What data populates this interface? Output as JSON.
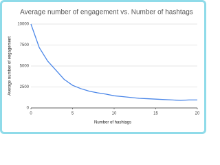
{
  "chart_data": {
    "type": "line",
    "title": "Average number of engagement vs. Number of hashtags",
    "x_label": "Number of hashtags",
    "y_label": "Average number of engagement",
    "x": [
      0,
      1,
      2,
      3,
      4,
      5,
      6,
      7,
      8,
      9,
      10,
      11,
      12,
      13,
      14,
      15,
      16,
      17,
      18,
      19,
      20
    ],
    "series": [
      {
        "name": "Average number of engagement",
        "color": "#4a86e8",
        "values": [
          10000,
          7200,
          5600,
          4500,
          3400,
          2700,
          2300,
          2000,
          1800,
          1650,
          1450,
          1350,
          1250,
          1150,
          1100,
          1050,
          1000,
          950,
          900,
          950,
          950
        ]
      }
    ],
    "xlim": [
      0,
      20
    ],
    "xticks": [
      0,
      5,
      10,
      15,
      20
    ],
    "ylim": [
      0,
      10000
    ],
    "yticks": [
      0,
      2500,
      5000,
      7500,
      10000
    ],
    "grid": true
  }
}
